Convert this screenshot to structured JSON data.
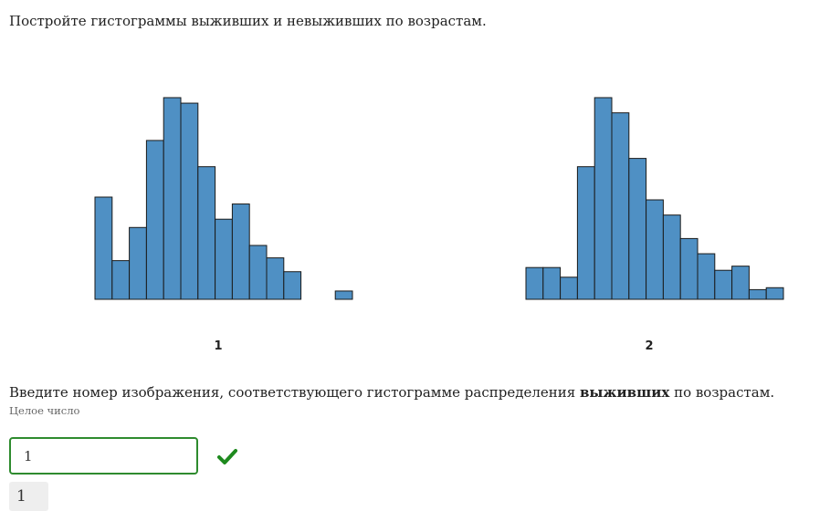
{
  "task": {
    "text": "Постройте гистограммы выживших и невыживших по возрастам."
  },
  "histograms": [
    {
      "label": "1"
    },
    {
      "label": "2"
    }
  ],
  "chart_data": [
    {
      "type": "bar",
      "label": "1",
      "values": [
        3.7,
        1.4,
        2.6,
        5.75,
        7.3,
        7.1,
        4.8,
        2.9,
        3.45,
        1.95,
        1.5,
        1.0,
        0,
        0,
        0.3
      ],
      "color": "#4f90c4"
    },
    {
      "type": "bar",
      "label": "2",
      "values": [
        1.15,
        1.15,
        0.8,
        4.8,
        7.3,
        6.75,
        5.1,
        3.6,
        3.05,
        2.2,
        1.65,
        1.05,
        1.2,
        0.35,
        0.42
      ],
      "color": "#4f90c4"
    }
  ],
  "question": {
    "text_before": "Введите номер изображения, соответствующего гистограмме распределения ",
    "text_bold": "выживших",
    "text_after": " по возрастам.",
    "hint": "Целое число"
  },
  "answer": {
    "input_value": "1",
    "correct_answer": "1",
    "status_icon": "check-icon",
    "status_color": "#1e8a1e"
  }
}
